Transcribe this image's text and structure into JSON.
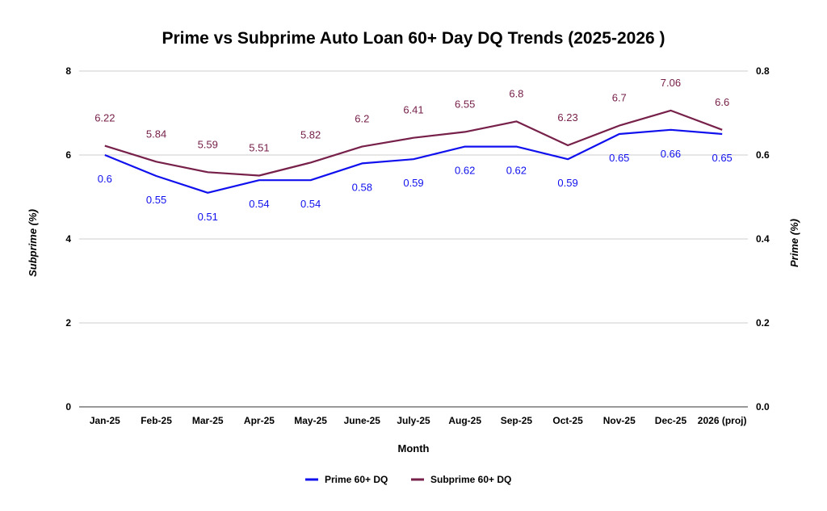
{
  "chart_data": {
    "type": "line",
    "title": "Prime vs Subprime Auto Loan 60+ Day DQ Trends (2025-2026 )",
    "xlabel": "Month",
    "ylabel_left": "Subprime (%)",
    "ylabel_right": "Prime (%)",
    "ylim_left": [
      0,
      8
    ],
    "ylim_right": [
      0,
      0.8
    ],
    "yticks_left": [
      "0",
      "2",
      "4",
      "6",
      "8"
    ],
    "yticks_right": [
      "0.0",
      "0.2",
      "0.4",
      "0.6",
      "0.8"
    ],
    "grid": true,
    "legend_position": "bottom",
    "categories": [
      "Jan-25",
      "Feb-25",
      "Mar-25",
      "Apr-25",
      "May-25",
      "June-25",
      "July-25",
      "Aug-25",
      "Sep-25",
      "Oct-25",
      "Nov-25",
      "Dec-25",
      "2026 (proj)"
    ],
    "series": [
      {
        "name": "Prime 60+ DQ",
        "axis": "right",
        "color": "#1010ee",
        "values": [
          0.6,
          0.55,
          0.51,
          0.54,
          0.54,
          0.58,
          0.59,
          0.62,
          0.62,
          0.59,
          0.65,
          0.66,
          0.65
        ],
        "labels": [
          "0.6",
          "0.55",
          "0.51",
          "0.54",
          "0.54",
          "0.58",
          "0.59",
          "0.62",
          "0.62",
          "0.59",
          "0.65",
          "0.66",
          "0.65"
        ]
      },
      {
        "name": "Subprime 60+ DQ",
        "axis": "left",
        "color": "#76204a",
        "values": [
          6.22,
          5.84,
          5.59,
          5.51,
          5.82,
          6.2,
          6.41,
          6.55,
          6.8,
          6.23,
          6.7,
          7.06,
          6.6
        ],
        "labels": [
          "6.22",
          "5.84",
          "5.59",
          "5.51",
          "5.82",
          "6.2",
          "6.41",
          "6.55",
          "6.8",
          "6.23",
          "6.7",
          "7.06",
          "6.6"
        ]
      }
    ]
  }
}
